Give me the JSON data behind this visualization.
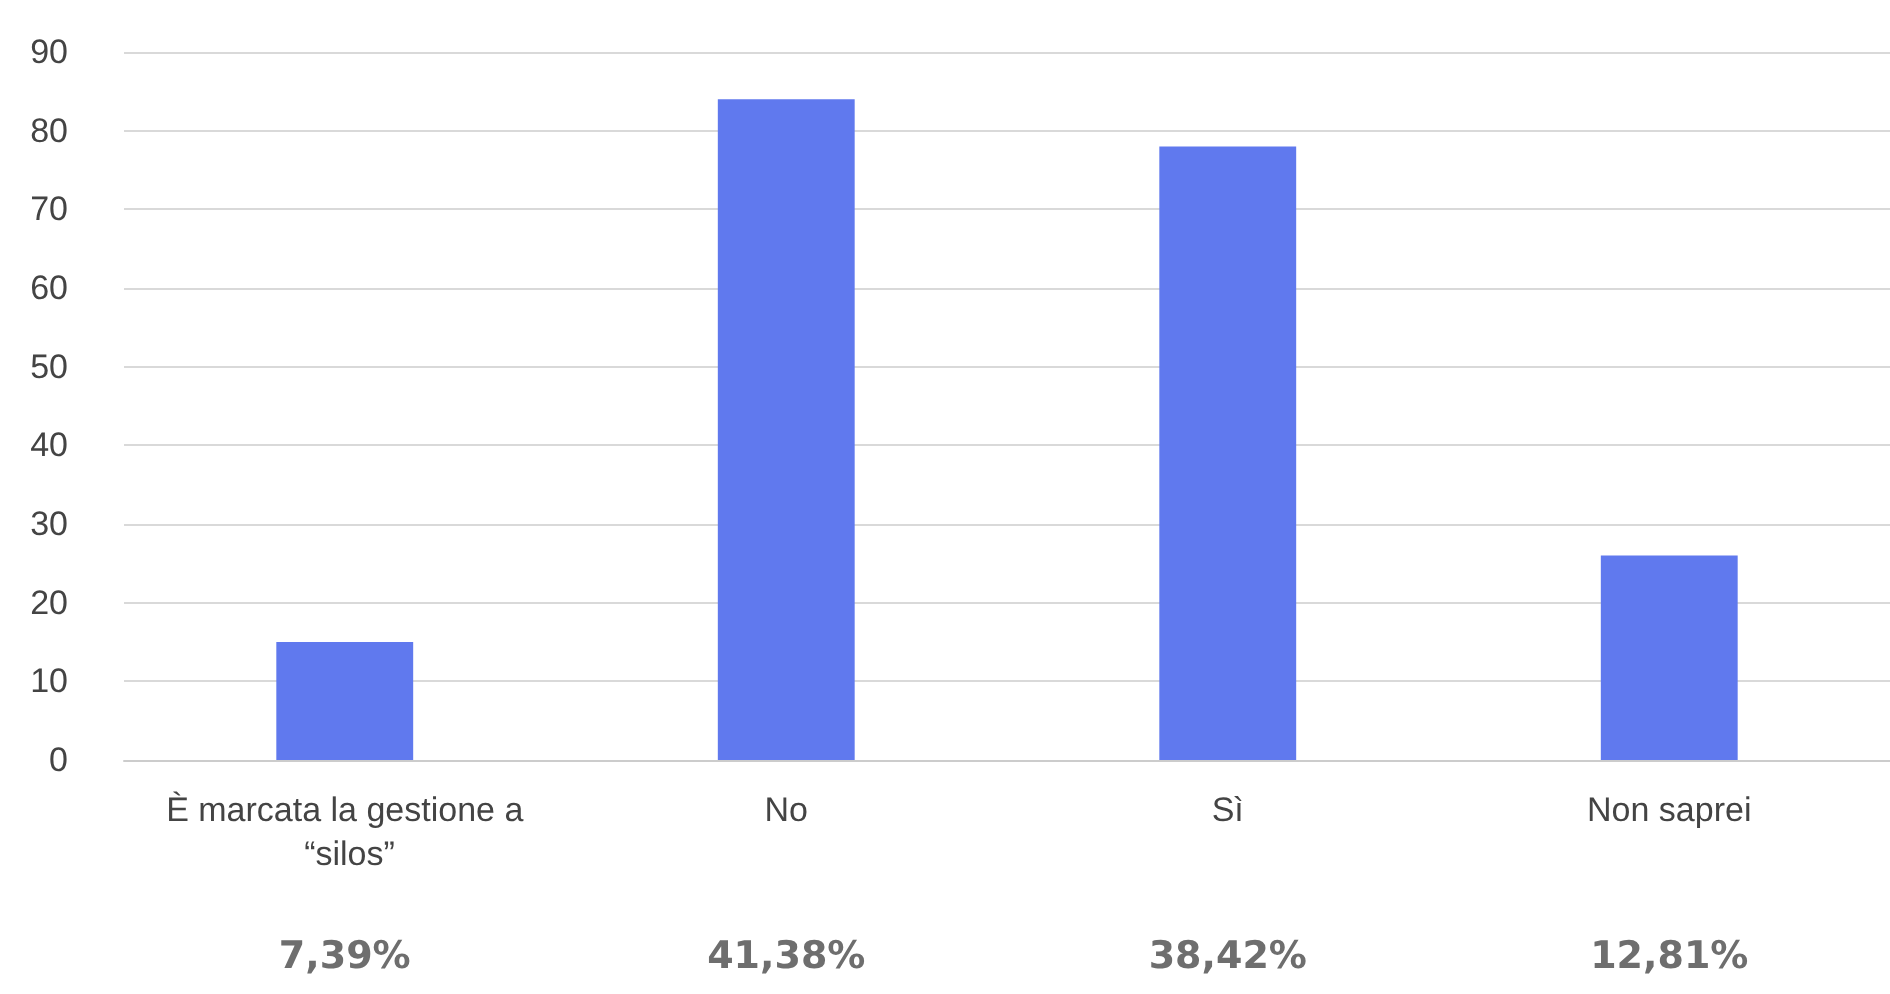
{
  "chart_data": {
    "type": "bar",
    "categories": [
      "È marcata la gestione a “silos”",
      "No",
      "Sì",
      "Non saprei"
    ],
    "values": [
      15,
      84,
      78,
      26
    ],
    "color": "#6079ee",
    "annotations": [
      "7,39%",
      "41,38%",
      "38,42%",
      "12,81%"
    ],
    "ylim": [
      0,
      90
    ],
    "yticks": [
      0,
      10,
      20,
      30,
      40,
      50,
      60,
      70,
      80,
      90
    ],
    "grid": "y"
  }
}
